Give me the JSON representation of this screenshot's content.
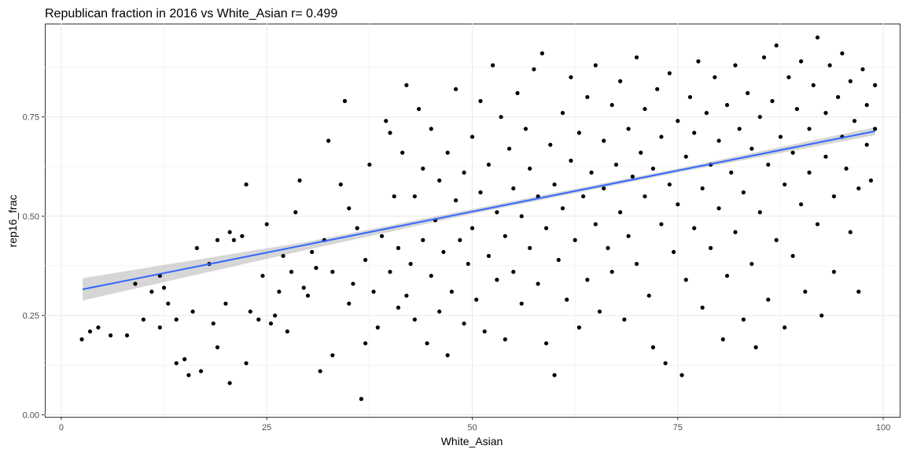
{
  "chart_data": {
    "type": "scatter",
    "title": "Republican fraction in 2016 vs White_Asian  r= 0.499",
    "xlabel": "White_Asian",
    "ylabel": "rep16_frac",
    "xlim": [
      -2,
      102
    ],
    "ylim": [
      -0.005,
      0.985
    ],
    "xticks": [
      0,
      25,
      50,
      75,
      100
    ],
    "xtick_labels": [
      "0",
      "25",
      "50",
      "75",
      "100"
    ],
    "yticks": [
      0.0,
      0.25,
      0.5,
      0.75
    ],
    "ytick_labels": [
      "0.00",
      "0.25",
      "0.50",
      "0.75"
    ],
    "grid": true,
    "colors": {
      "points": "#000000",
      "fit_line": "#3366FF",
      "band": "#999999",
      "grid": "#ebebeb"
    },
    "fit": {
      "x": [
        2.6,
        99
      ],
      "y": [
        0.316,
        0.714
      ],
      "se_band": [
        [
          2.6,
          0.288,
          0.344
        ],
        [
          30,
          0.416,
          0.436
        ],
        [
          50,
          0.506,
          0.518
        ],
        [
          75,
          0.61,
          0.62
        ],
        [
          99,
          0.704,
          0.724
        ]
      ]
    },
    "points": [
      [
        2.5,
        0.19
      ],
      [
        3.5,
        0.21
      ],
      [
        4.5,
        0.22
      ],
      [
        6,
        0.2
      ],
      [
        8,
        0.2
      ],
      [
        9,
        0.33
      ],
      [
        10,
        0.24
      ],
      [
        11,
        0.31
      ],
      [
        12,
        0.35
      ],
      [
        12.5,
        0.32
      ],
      [
        12,
        0.22
      ],
      [
        13,
        0.28
      ],
      [
        14,
        0.24
      ],
      [
        14,
        0.13
      ],
      [
        15,
        0.14
      ],
      [
        15.5,
        0.1
      ],
      [
        16,
        0.26
      ],
      [
        16.5,
        0.42
      ],
      [
        17,
        0.11
      ],
      [
        18,
        0.38
      ],
      [
        18.5,
        0.23
      ],
      [
        19,
        0.17
      ],
      [
        19,
        0.44
      ],
      [
        20,
        0.28
      ],
      [
        20.5,
        0.08
      ],
      [
        20.5,
        0.46
      ],
      [
        21,
        0.44
      ],
      [
        22,
        0.45
      ],
      [
        22.5,
        0.58
      ],
      [
        22.5,
        0.13
      ],
      [
        23,
        0.26
      ],
      [
        24,
        0.24
      ],
      [
        24.5,
        0.35
      ],
      [
        25,
        0.48
      ],
      [
        25.5,
        0.23
      ],
      [
        26,
        0.25
      ],
      [
        26.5,
        0.31
      ],
      [
        27,
        0.4
      ],
      [
        27.5,
        0.21
      ],
      [
        28,
        0.36
      ],
      [
        28.5,
        0.51
      ],
      [
        29,
        0.59
      ],
      [
        29.5,
        0.32
      ],
      [
        30,
        0.3
      ],
      [
        30.5,
        0.41
      ],
      [
        31,
        0.37
      ],
      [
        31.5,
        0.11
      ],
      [
        32,
        0.44
      ],
      [
        32.5,
        0.69
      ],
      [
        33,
        0.15
      ],
      [
        33,
        0.36
      ],
      [
        34,
        0.58
      ],
      [
        34.5,
        0.79
      ],
      [
        35,
        0.28
      ],
      [
        35,
        0.52
      ],
      [
        35.5,
        0.33
      ],
      [
        36,
        0.47
      ],
      [
        36.5,
        0.04
      ],
      [
        37,
        0.18
      ],
      [
        37,
        0.39
      ],
      [
        37.5,
        0.63
      ],
      [
        38,
        0.31
      ],
      [
        38.5,
        0.22
      ],
      [
        39,
        0.45
      ],
      [
        39.5,
        0.74
      ],
      [
        40,
        0.36
      ],
      [
        40,
        0.71
      ],
      [
        40.5,
        0.55
      ],
      [
        41,
        0.27
      ],
      [
        41,
        0.42
      ],
      [
        41.5,
        0.66
      ],
      [
        42,
        0.3
      ],
      [
        42,
        0.83
      ],
      [
        42.5,
        0.38
      ],
      [
        43,
        0.24
      ],
      [
        43,
        0.55
      ],
      [
        43.5,
        0.77
      ],
      [
        44,
        0.44
      ],
      [
        44,
        0.62
      ],
      [
        44.5,
        0.18
      ],
      [
        45,
        0.35
      ],
      [
        45,
        0.72
      ],
      [
        45.5,
        0.49
      ],
      [
        46,
        0.26
      ],
      [
        46,
        0.59
      ],
      [
        46.5,
        0.41
      ],
      [
        47,
        0.66
      ],
      [
        47,
        0.15
      ],
      [
        47.5,
        0.31
      ],
      [
        48,
        0.54
      ],
      [
        48,
        0.82
      ],
      [
        48.5,
        0.44
      ],
      [
        49,
        0.23
      ],
      [
        49,
        0.61
      ],
      [
        49.5,
        0.38
      ],
      [
        50,
        0.7
      ],
      [
        50,
        0.47
      ],
      [
        50.5,
        0.29
      ],
      [
        51,
        0.56
      ],
      [
        51,
        0.79
      ],
      [
        51.5,
        0.21
      ],
      [
        52,
        0.63
      ],
      [
        52,
        0.4
      ],
      [
        52.5,
        0.88
      ],
      [
        53,
        0.34
      ],
      [
        53,
        0.51
      ],
      [
        53.5,
        0.75
      ],
      [
        54,
        0.45
      ],
      [
        54,
        0.19
      ],
      [
        54.5,
        0.67
      ],
      [
        55,
        0.57
      ],
      [
        55,
        0.36
      ],
      [
        55.5,
        0.81
      ],
      [
        56,
        0.5
      ],
      [
        56,
        0.28
      ],
      [
        56.5,
        0.72
      ],
      [
        57,
        0.42
      ],
      [
        57,
        0.62
      ],
      [
        57.5,
        0.87
      ],
      [
        58,
        0.33
      ],
      [
        58,
        0.55
      ],
      [
        58.5,
        0.91
      ],
      [
        59,
        0.47
      ],
      [
        59,
        0.18
      ],
      [
        59.5,
        0.68
      ],
      [
        60,
        0.1
      ],
      [
        60,
        0.58
      ],
      [
        60.5,
        0.39
      ],
      [
        61,
        0.76
      ],
      [
        61,
        0.52
      ],
      [
        61.5,
        0.29
      ],
      [
        62,
        0.85
      ],
      [
        62,
        0.64
      ],
      [
        62.5,
        0.44
      ],
      [
        63,
        0.22
      ],
      [
        63,
        0.71
      ],
      [
        63.5,
        0.55
      ],
      [
        64,
        0.34
      ],
      [
        64,
        0.8
      ],
      [
        64.5,
        0.61
      ],
      [
        65,
        0.48
      ],
      [
        65,
        0.88
      ],
      [
        65.5,
        0.26
      ],
      [
        66,
        0.69
      ],
      [
        66,
        0.57
      ],
      [
        66.5,
        0.42
      ],
      [
        67,
        0.78
      ],
      [
        67,
        0.36
      ],
      [
        67.5,
        0.63
      ],
      [
        68,
        0.84
      ],
      [
        68,
        0.51
      ],
      [
        68.5,
        0.24
      ],
      [
        69,
        0.72
      ],
      [
        69,
        0.45
      ],
      [
        69.5,
        0.6
      ],
      [
        70,
        0.9
      ],
      [
        70,
        0.38
      ],
      [
        70.5,
        0.66
      ],
      [
        71,
        0.55
      ],
      [
        71,
        0.77
      ],
      [
        71.5,
        0.3
      ],
      [
        72,
        0.62
      ],
      [
        72,
        0.17
      ],
      [
        72.5,
        0.82
      ],
      [
        73,
        0.48
      ],
      [
        73,
        0.7
      ],
      [
        73.5,
        0.13
      ],
      [
        74,
        0.58
      ],
      [
        74,
        0.86
      ],
      [
        74.5,
        0.41
      ],
      [
        75,
        0.74
      ],
      [
        75,
        0.53
      ],
      [
        75.5,
        0.1
      ],
      [
        76,
        0.65
      ],
      [
        76,
        0.34
      ],
      [
        76.5,
        0.8
      ],
      [
        77,
        0.47
      ],
      [
        77,
        0.71
      ],
      [
        77.5,
        0.89
      ],
      [
        78,
        0.57
      ],
      [
        78,
        0.27
      ],
      [
        78.5,
        0.76
      ],
      [
        79,
        0.63
      ],
      [
        79,
        0.42
      ],
      [
        79.5,
        0.85
      ],
      [
        80,
        0.52
      ],
      [
        80,
        0.69
      ],
      [
        80.5,
        0.19
      ],
      [
        81,
        0.78
      ],
      [
        81,
        0.35
      ],
      [
        81.5,
        0.61
      ],
      [
        82,
        0.88
      ],
      [
        82,
        0.46
      ],
      [
        82.5,
        0.72
      ],
      [
        83,
        0.24
      ],
      [
        83,
        0.56
      ],
      [
        83.5,
        0.81
      ],
      [
        84,
        0.67
      ],
      [
        84,
        0.38
      ],
      [
        84.5,
        0.17
      ],
      [
        85,
        0.75
      ],
      [
        85,
        0.51
      ],
      [
        85.5,
        0.9
      ],
      [
        86,
        0.63
      ],
      [
        86,
        0.29
      ],
      [
        86.5,
        0.79
      ],
      [
        87,
        0.44
      ],
      [
        87,
        0.93
      ],
      [
        87.5,
        0.7
      ],
      [
        88,
        0.58
      ],
      [
        88,
        0.22
      ],
      [
        88.5,
        0.85
      ],
      [
        89,
        0.66
      ],
      [
        89,
        0.4
      ],
      [
        89.5,
        0.77
      ],
      [
        90,
        0.53
      ],
      [
        90,
        0.89
      ],
      [
        90.5,
        0.31
      ],
      [
        91,
        0.72
      ],
      [
        91,
        0.61
      ],
      [
        91.5,
        0.83
      ],
      [
        92,
        0.48
      ],
      [
        92,
        0.95
      ],
      [
        92.5,
        0.25
      ],
      [
        93,
        0.76
      ],
      [
        93,
        0.65
      ],
      [
        93.5,
        0.88
      ],
      [
        94,
        0.55
      ],
      [
        94,
        0.36
      ],
      [
        94.5,
        0.8
      ],
      [
        95,
        0.7
      ],
      [
        95,
        0.91
      ],
      [
        95.5,
        0.62
      ],
      [
        96,
        0.46
      ],
      [
        96,
        0.84
      ],
      [
        96.5,
        0.74
      ],
      [
        97,
        0.31
      ],
      [
        97,
        0.57
      ],
      [
        97.5,
        0.87
      ],
      [
        98,
        0.68
      ],
      [
        98,
        0.78
      ],
      [
        98.5,
        0.59
      ],
      [
        99,
        0.83
      ],
      [
        99,
        0.72
      ]
    ]
  }
}
